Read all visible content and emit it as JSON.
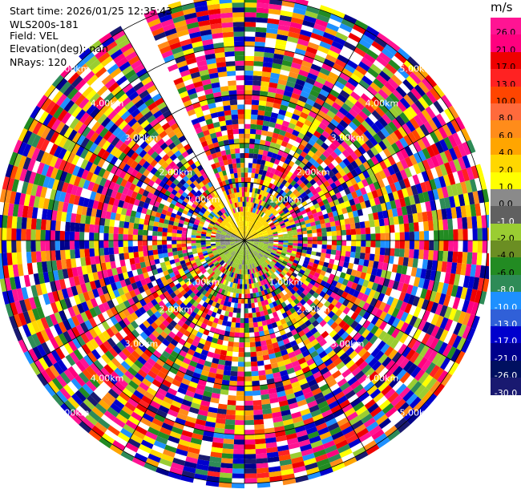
{
  "info": {
    "start_time": "Start time: 2026/01/25 12:35:43",
    "instrument": "WLS200s-181",
    "field": "Field: VEL",
    "elevation": "Elevation(deg): nan",
    "nrays": "NRays: 120"
  },
  "chart_data": {
    "type": "ppi",
    "field": "VEL",
    "units": "m/s",
    "nrays": 120,
    "max_range_km": 5.0,
    "range_rings_km": [
      "1.00km",
      "2.00km",
      "3.00km",
      "4.00km",
      "5.00km"
    ],
    "missing_sector_deg": [
      331,
      337
    ],
    "colorbar": {
      "label": "m/s",
      "ticks": [
        "26.0",
        "21.0",
        "17.0",
        "13.0",
        "10.0",
        "8.0",
        "6.0",
        "4.0",
        "2.0",
        "1.0",
        "0.0",
        "-1.0",
        "-2.0",
        "-4.0",
        "-6.0",
        "-8.0",
        "-10.0",
        "-13.0",
        "-17.0",
        "-21.0",
        "-26.0",
        "-30.0"
      ],
      "colors": [
        "#ff1493",
        "#ff007f",
        "#ee0000",
        "#ff2222",
        "#ff4500",
        "#ff6a3c",
        "#ff8c1a",
        "#ffa500",
        "#ffd700",
        "#ffff00",
        "#8a8a8a",
        "#606060",
        "#9acd32",
        "#6b8e23",
        "#228b22",
        "#2e8b57",
        "#1e90ff",
        "#3060d8",
        "#0000cd",
        "#00008b",
        "#001060",
        "#191970"
      ]
    }
  }
}
